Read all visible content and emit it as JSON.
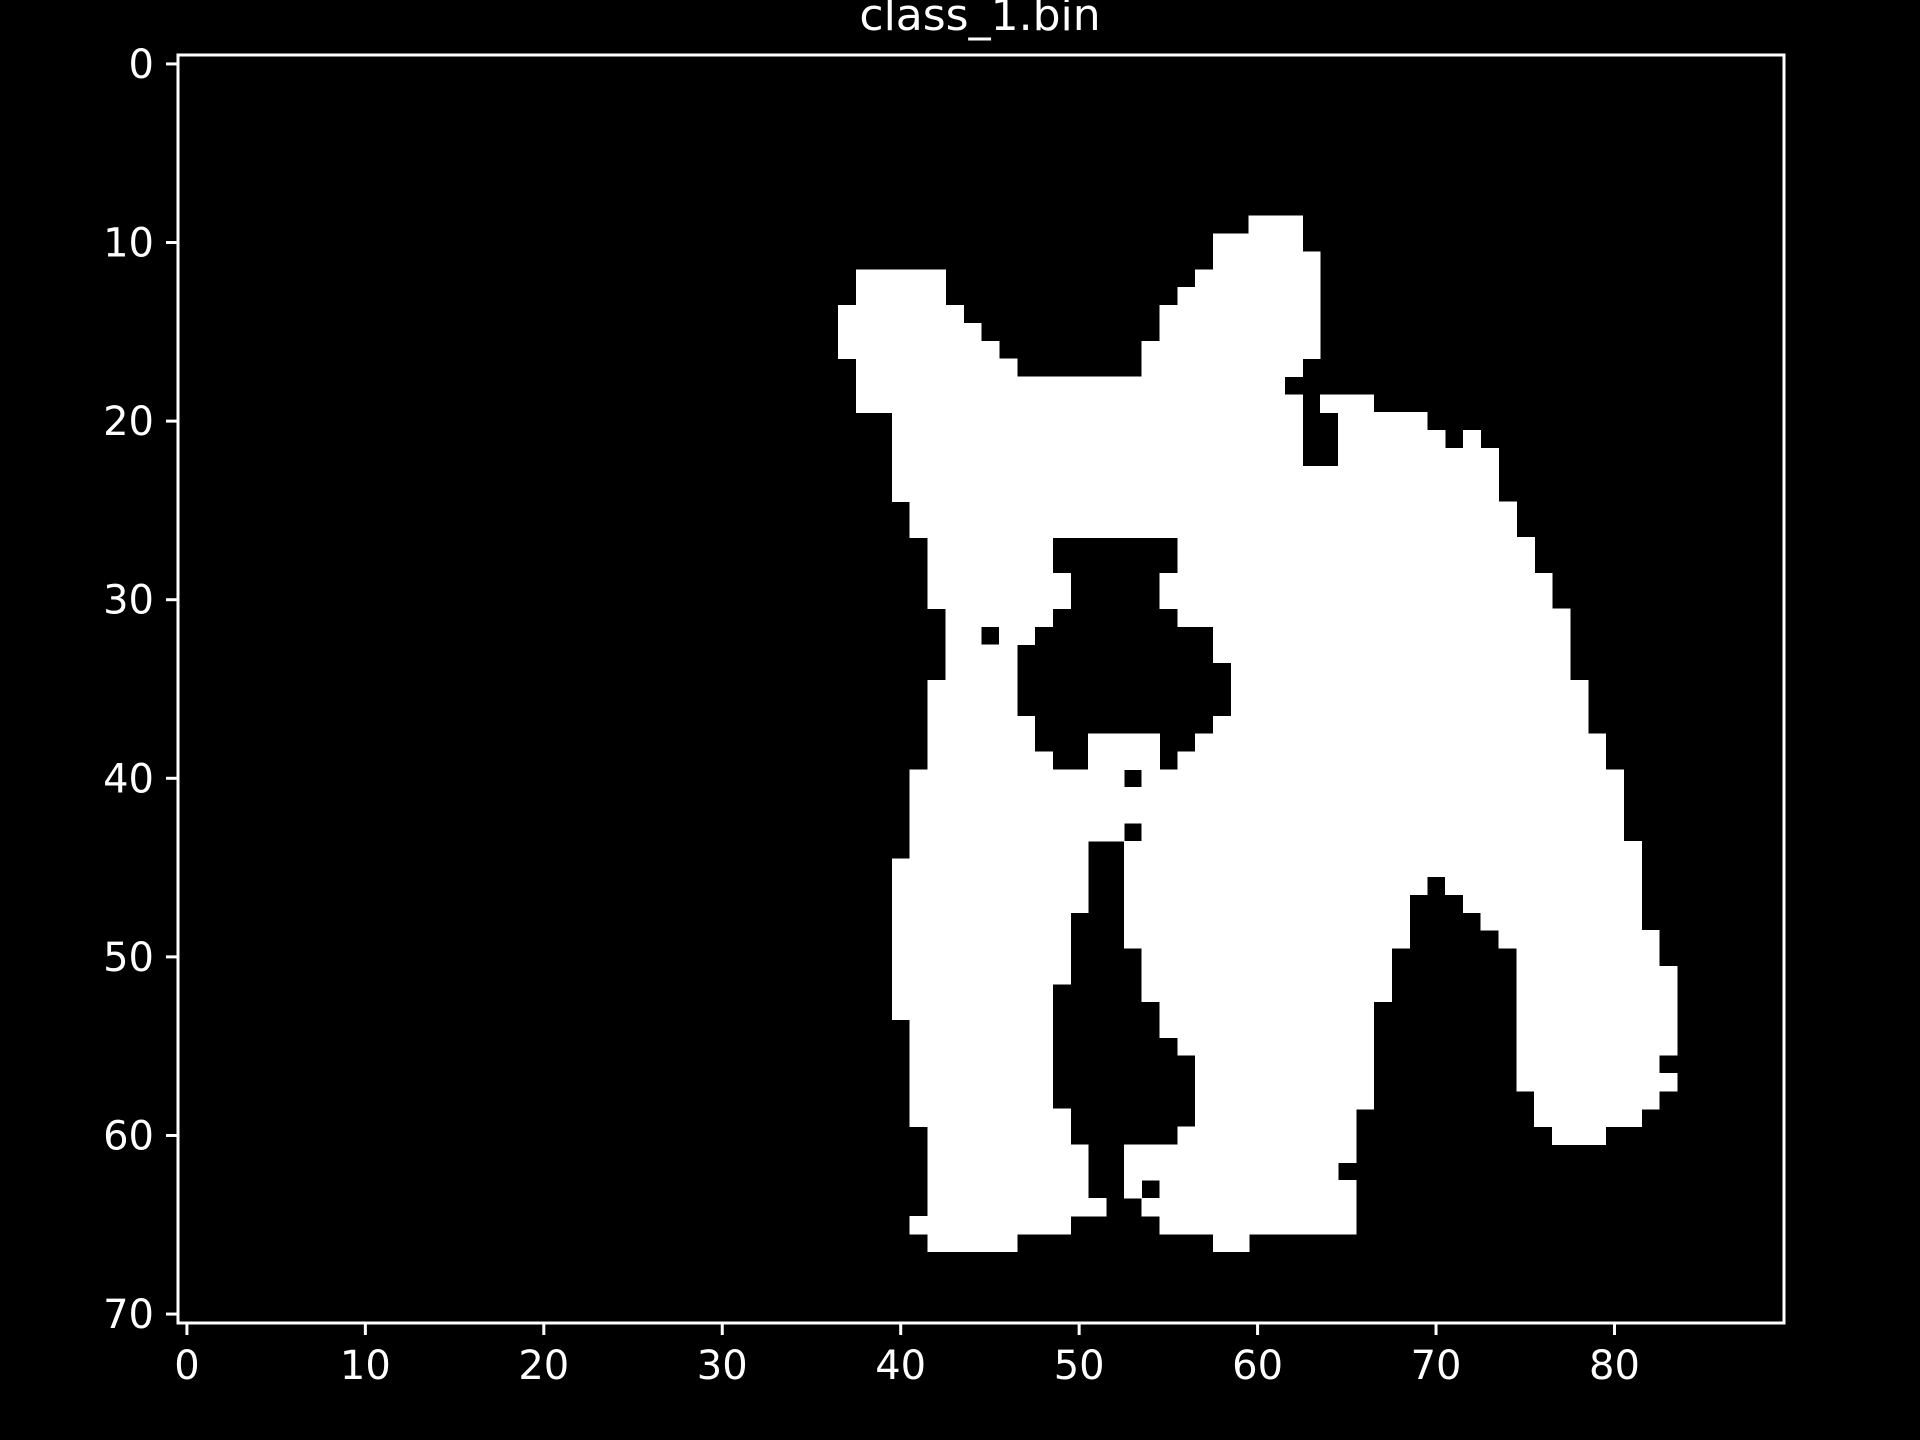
{
  "chart_data": {
    "type": "heatmap",
    "title": "class_1.bin",
    "xlabel": "",
    "ylabel": "",
    "xlim": [
      -0.5,
      89.5
    ],
    "ylim": [
      70.5,
      -0.5
    ],
    "x_ticks": [
      "0",
      "10",
      "20",
      "30",
      "40",
      "50",
      "60",
      "70",
      "80"
    ],
    "y_ticks": [
      "0",
      "10",
      "20",
      "30",
      "40",
      "50",
      "60",
      "70"
    ],
    "grid": false,
    "colormap": {
      "0": "#000000",
      "1": "#ffffff"
    },
    "mask_rows_white_spans": {
      "9": [
        [
          60,
          62
        ]
      ],
      "10": [
        [
          58,
          62
        ]
      ],
      "11": [
        [
          58,
          63
        ]
      ],
      "12": [
        [
          38,
          42
        ],
        [
          57,
          63
        ]
      ],
      "13": [
        [
          38,
          42
        ],
        [
          56,
          63
        ]
      ],
      "14": [
        [
          37,
          43
        ],
        [
          55,
          63
        ]
      ],
      "15": [
        [
          37,
          44
        ],
        [
          55,
          63
        ]
      ],
      "16": [
        [
          37,
          45
        ],
        [
          54,
          63
        ]
      ],
      "17": [
        [
          38,
          46
        ],
        [
          54,
          62
        ]
      ],
      "18": [
        [
          38,
          61
        ]
      ],
      "19": [
        [
          38,
          62
        ],
        [
          64,
          66
        ]
      ],
      "20": [
        [
          40,
          62
        ],
        [
          65,
          69
        ]
      ],
      "21": [
        [
          40,
          62
        ],
        [
          65,
          70
        ],
        [
          72,
          72
        ]
      ],
      "22": [
        [
          40,
          62
        ],
        [
          65,
          73
        ]
      ],
      "23": [
        [
          40,
          73
        ]
      ],
      "24": [
        [
          40,
          73
        ]
      ],
      "25": [
        [
          41,
          74
        ]
      ],
      "26": [
        [
          41,
          74
        ]
      ],
      "27": [
        [
          42,
          48
        ],
        [
          56,
          75
        ]
      ],
      "28": [
        [
          42,
          48
        ],
        [
          56,
          75
        ]
      ],
      "29": [
        [
          42,
          49
        ],
        [
          55,
          76
        ]
      ],
      "30": [
        [
          42,
          49
        ],
        [
          55,
          76
        ]
      ],
      "31": [
        [
          43,
          48
        ],
        [
          56,
          77
        ]
      ],
      "32": [
        [
          43,
          44
        ],
        [
          46,
          47
        ],
        [
          58,
          77
        ]
      ],
      "33": [
        [
          43,
          46
        ],
        [
          58,
          77
        ]
      ],
      "34": [
        [
          43,
          46
        ],
        [
          59,
          77
        ]
      ],
      "35": [
        [
          42,
          46
        ],
        [
          59,
          78
        ]
      ],
      "36": [
        [
          42,
          46
        ],
        [
          59,
          78
        ]
      ],
      "37": [
        [
          42,
          47
        ],
        [
          58,
          78
        ]
      ],
      "38": [
        [
          42,
          47
        ],
        [
          51,
          54
        ],
        [
          57,
          79
        ]
      ],
      "39": [
        [
          42,
          48
        ],
        [
          51,
          54
        ],
        [
          56,
          79
        ]
      ],
      "40": [
        [
          41,
          52
        ],
        [
          54,
          80
        ]
      ],
      "41": [
        [
          41,
          80
        ]
      ],
      "42": [
        [
          41,
          80
        ]
      ],
      "43": [
        [
          41,
          52
        ],
        [
          54,
          80
        ]
      ],
      "44": [
        [
          41,
          50
        ],
        [
          53,
          81
        ]
      ],
      "45": [
        [
          40,
          50
        ],
        [
          53,
          81
        ]
      ],
      "46": [
        [
          40,
          50
        ],
        [
          53,
          69
        ],
        [
          71,
          81
        ]
      ],
      "47": [
        [
          40,
          50
        ],
        [
          53,
          68
        ],
        [
          72,
          81
        ]
      ],
      "48": [
        [
          40,
          49
        ],
        [
          53,
          68
        ],
        [
          73,
          81
        ]
      ],
      "49": [
        [
          40,
          49
        ],
        [
          53,
          68
        ],
        [
          74,
          82
        ]
      ],
      "50": [
        [
          40,
          49
        ],
        [
          54,
          67
        ],
        [
          75,
          82
        ]
      ],
      "51": [
        [
          40,
          49
        ],
        [
          54,
          67
        ],
        [
          75,
          83
        ]
      ],
      "52": [
        [
          40,
          48
        ],
        [
          54,
          67
        ],
        [
          75,
          83
        ]
      ],
      "53": [
        [
          40,
          48
        ],
        [
          55,
          66
        ],
        [
          75,
          83
        ]
      ],
      "54": [
        [
          41,
          48
        ],
        [
          55,
          66
        ],
        [
          75,
          83
        ]
      ],
      "55": [
        [
          41,
          48
        ],
        [
          56,
          66
        ],
        [
          75,
          83
        ]
      ],
      "56": [
        [
          41,
          48
        ],
        [
          57,
          66
        ],
        [
          75,
          82
        ]
      ],
      "57": [
        [
          41,
          48
        ],
        [
          57,
          66
        ],
        [
          75,
          83
        ]
      ],
      "58": [
        [
          41,
          48
        ],
        [
          57,
          66
        ],
        [
          76,
          82
        ]
      ],
      "59": [
        [
          41,
          49
        ],
        [
          57,
          65
        ],
        [
          76,
          81
        ]
      ],
      "60": [
        [
          42,
          49
        ],
        [
          56,
          65
        ],
        [
          77,
          79
        ]
      ],
      "61": [
        [
          42,
          50
        ],
        [
          53,
          65
        ]
      ],
      "62": [
        [
          42,
          50
        ],
        [
          53,
          64
        ]
      ],
      "63": [
        [
          42,
          50
        ],
        [
          53,
          53
        ],
        [
          55,
          65
        ]
      ],
      "64": [
        [
          42,
          51
        ],
        [
          54,
          65
        ]
      ],
      "65": [
        [
          41,
          49
        ],
        [
          55,
          65
        ]
      ],
      "66": [
        [
          42,
          46
        ],
        [
          58,
          59
        ]
      ]
    }
  }
}
